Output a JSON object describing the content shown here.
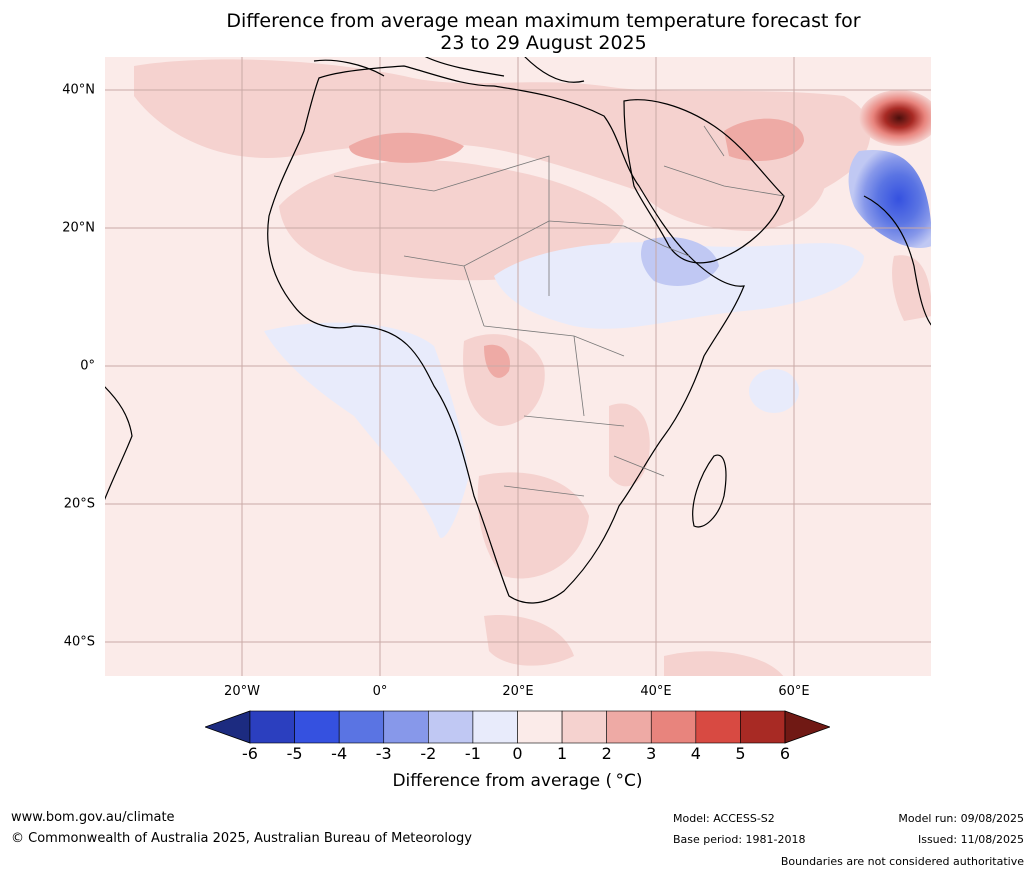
{
  "title_line1": "Difference from average mean maximum temperature forecast for",
  "title_line2": "23 to 29 August 2025",
  "lat_labels": [
    "40°N",
    "20°N",
    "0°",
    "20°S",
    "40°S"
  ],
  "lon_labels": [
    "20°W",
    "0°",
    "20°E",
    "40°E",
    "60°E"
  ],
  "colorbar": {
    "ticks": [
      "-6",
      "-5",
      "-4",
      "-3",
      "-2",
      "-1",
      "0",
      "1",
      "2",
      "3",
      "4",
      "5",
      "6"
    ],
    "colors": [
      "#1c2b80",
      "#2b3fbf",
      "#3551e0",
      "#5a74e3",
      "#8798ea",
      "#c0c8f3",
      "#e8ebfb",
      "#fbebe9",
      "#f5d2cf",
      "#eeaaa5",
      "#e8847d",
      "#d84a42",
      "#a82a24",
      "#701914"
    ],
    "label": "Difference from average ( °C)"
  },
  "footer": {
    "url": "www.bom.gov.au/climate",
    "copyright": "© Commonwealth of Australia 2025, Australian Bureau of Meteorology",
    "model": "Model: ACCESS-S2",
    "base_period": "Base period: 1981-2018",
    "model_run": "Model run: 09/08/2025",
    "issued": "Issued: 11/08/2025",
    "disclaimer": "Boundaries are not considered authoritative"
  }
}
